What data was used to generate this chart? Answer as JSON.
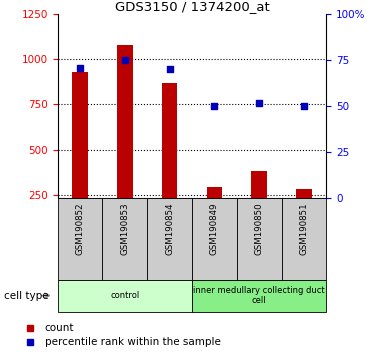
{
  "title": "GDS3150 / 1374200_at",
  "samples": [
    "GSM190852",
    "GSM190853",
    "GSM190854",
    "GSM190849",
    "GSM190850",
    "GSM190851"
  ],
  "counts": [
    930,
    1080,
    870,
    295,
    380,
    280
  ],
  "percentile_ranks": [
    71,
    75,
    70,
    50,
    52,
    50
  ],
  "bar_bottom": 230,
  "ylim_left": [
    230,
    1250
  ],
  "ylim_right": [
    0,
    100
  ],
  "yticks_left": [
    250,
    500,
    750,
    1000,
    1250
  ],
  "yticks_right": [
    0,
    25,
    50,
    75,
    100
  ],
  "bar_color": "#bb0000",
  "dot_color": "#0000bb",
  "cell_types": [
    {
      "label": "control",
      "indices": [
        0,
        1,
        2
      ],
      "color": "#ccffcc"
    },
    {
      "label": "inner medullary collecting duct\ncell",
      "indices": [
        3,
        4,
        5
      ],
      "color": "#88ee88"
    }
  ],
  "cell_type_label": "cell type",
  "legend_count_label": "count",
  "legend_percentile_label": "percentile rank within the sample",
  "bar_width": 0.35,
  "dot_marker": "s",
  "dot_size": 25
}
